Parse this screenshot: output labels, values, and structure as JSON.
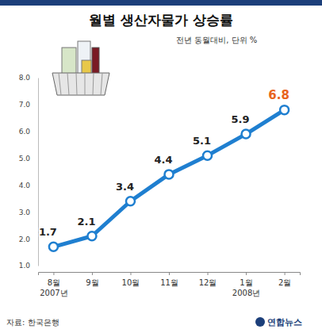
{
  "chart_data": {
    "type": "line",
    "title": "월별 생산자물가 상승률",
    "subtitle": "전년 동월대비, 단위 %",
    "categories": [
      "8월\n2007년",
      "9월",
      "10월",
      "11월",
      "12월",
      "1월\n2008년",
      "2월"
    ],
    "values": [
      1.7,
      2.1,
      3.4,
      4.4,
      5.1,
      5.9,
      6.8
    ],
    "color": "#1f7fd0",
    "marker": "circle",
    "data_labels": true,
    "grid": false,
    "ylim": [
      1,
      8
    ],
    "yticks": [
      {
        "value": 1,
        "label": "1.0"
      },
      {
        "value": 2,
        "label": "2.0"
      },
      {
        "value": 3,
        "label": "3.0"
      },
      {
        "value": 4,
        "label": "4.0"
      },
      {
        "value": 5,
        "label": "5.0"
      },
      {
        "value": 6,
        "label": "6.0"
      },
      {
        "value": 7,
        "label": "7.0"
      },
      {
        "value": 8,
        "label": "8.0"
      }
    ],
    "source": "자료: 한국은행",
    "credit": "연합뉴스"
  }
}
